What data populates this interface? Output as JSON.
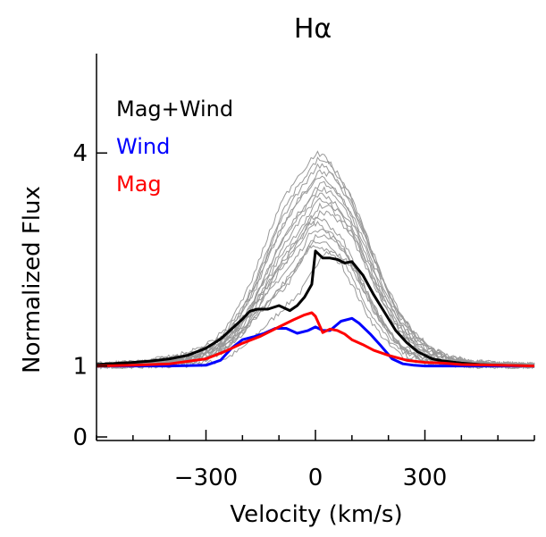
{
  "chart_data": {
    "type": "line",
    "title": "Hα",
    "xlabel": "Velocity (km/s)",
    "ylabel": "Normalized Flux",
    "xlim": [
      -600,
      600
    ],
    "ylim": [
      -0.05,
      5.4
    ],
    "x_ticks": [
      -300,
      0,
      300
    ],
    "x_tick_labels": [
      "−300",
      "0",
      "300"
    ],
    "y_ticks": [
      0,
      1,
      4
    ],
    "y_tick_labels": [
      "0",
      "1",
      "4"
    ],
    "legend": {
      "placement": "top-left",
      "entries": [
        {
          "label": "Mag+Wind",
          "color": "#000000"
        },
        {
          "label": "Wind",
          "color": "#0000ff"
        },
        {
          "label": "Mag",
          "color": "#ff0000"
        }
      ]
    },
    "observed": {
      "color": "#999999",
      "count": 18,
      "x": [
        -600,
        -500,
        -420,
        -350,
        -300,
        -260,
        -220,
        -180,
        -140,
        -100,
        -60,
        -30,
        0,
        30,
        60,
        90,
        120,
        150,
        180,
        220,
        260,
        300,
        350,
        420,
        500,
        600
      ],
      "y_min": [
        1.0,
        1.0,
        1.0,
        1.02,
        1.05,
        1.12,
        1.25,
        1.45,
        1.65,
        1.85,
        2.05,
        2.3,
        2.6,
        2.6,
        2.5,
        2.35,
        2.05,
        1.75,
        1.5,
        1.25,
        1.1,
        1.04,
        1.02,
        1.0,
        1.0,
        1.0
      ],
      "y_max": [
        1.02,
        1.05,
        1.1,
        1.18,
        1.3,
        1.45,
        1.75,
        2.15,
        2.7,
        3.25,
        3.6,
        3.8,
        4.0,
        3.92,
        3.7,
        3.45,
        3.05,
        2.65,
        2.25,
        1.8,
        1.5,
        1.3,
        1.15,
        1.06,
        1.03,
        1.01
      ]
    },
    "series": [
      {
        "name": "Mag+Wind",
        "color": "#000000",
        "x": [
          -600,
          -500,
          -450,
          -400,
          -350,
          -300,
          -260,
          -230,
          -200,
          -180,
          -160,
          -130,
          -100,
          -70,
          -50,
          -30,
          -10,
          0,
          20,
          40,
          60,
          80,
          100,
          130,
          160,
          190,
          220,
          250,
          280,
          320,
          350,
          400,
          450,
          500,
          600
        ],
        "y": [
          1.02,
          1.05,
          1.07,
          1.1,
          1.15,
          1.25,
          1.38,
          1.52,
          1.66,
          1.77,
          1.8,
          1.8,
          1.85,
          1.78,
          1.85,
          1.97,
          2.15,
          2.62,
          2.52,
          2.52,
          2.5,
          2.45,
          2.47,
          2.28,
          2.0,
          1.75,
          1.5,
          1.33,
          1.2,
          1.1,
          1.07,
          1.04,
          1.02,
          1.01,
          1.0
        ]
      },
      {
        "name": "Wind",
        "color": "#0000ff",
        "x": [
          -600,
          -400,
          -300,
          -260,
          -230,
          -200,
          -170,
          -140,
          -110,
          -80,
          -50,
          -20,
          0,
          20,
          40,
          70,
          100,
          120,
          150,
          180,
          210,
          240,
          270,
          300,
          350,
          400,
          600
        ],
        "y": [
          1.0,
          1.0,
          1.01,
          1.08,
          1.25,
          1.37,
          1.41,
          1.46,
          1.53,
          1.53,
          1.46,
          1.5,
          1.55,
          1.5,
          1.5,
          1.63,
          1.67,
          1.6,
          1.45,
          1.28,
          1.1,
          1.03,
          1.01,
          1.0,
          1.0,
          1.0,
          1.0
        ]
      },
      {
        "name": "Mag",
        "color": "#ff0000",
        "x": [
          -600,
          -500,
          -400,
          -300,
          -250,
          -200,
          -150,
          -100,
          -60,
          -30,
          -10,
          0,
          20,
          40,
          60,
          80,
          100,
          130,
          160,
          200,
          250,
          300,
          350,
          400,
          500,
          600
        ],
        "y": [
          1.0,
          1.01,
          1.03,
          1.1,
          1.2,
          1.32,
          1.42,
          1.55,
          1.65,
          1.72,
          1.75,
          1.7,
          1.47,
          1.52,
          1.5,
          1.45,
          1.37,
          1.3,
          1.22,
          1.15,
          1.08,
          1.05,
          1.04,
          1.02,
          1.01,
          1.0
        ]
      }
    ]
  }
}
